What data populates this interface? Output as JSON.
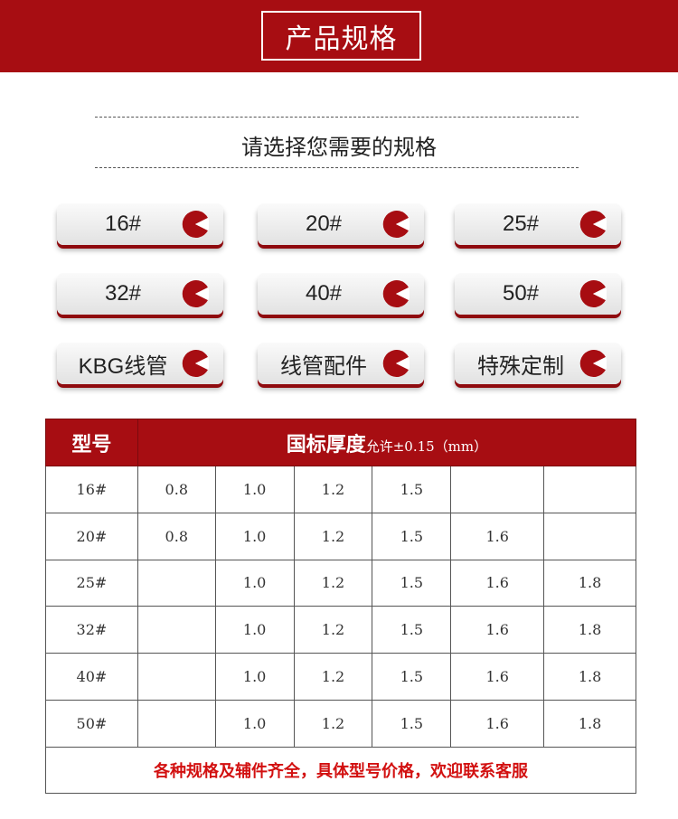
{
  "banner": {
    "title": "产品规格"
  },
  "subtitle": "请选择您需要的规格",
  "accent": "#a70d12",
  "buttons": [
    {
      "label": "16#",
      "icon": "pie-chart-icon"
    },
    {
      "label": "20#",
      "icon": "pie-chart-icon"
    },
    {
      "label": "25#",
      "icon": "pie-chart-icon"
    },
    {
      "label": "32#",
      "icon": "pie-chart-icon"
    },
    {
      "label": "40#",
      "icon": "pie-chart-icon"
    },
    {
      "label": "50#",
      "icon": "pie-chart-icon"
    },
    {
      "label": "KBG线管",
      "icon": "pie-chart-icon"
    },
    {
      "label": "线管配件",
      "icon": "pie-chart-icon"
    },
    {
      "label": "特殊定制",
      "icon": "pie-chart-icon"
    }
  ],
  "table": {
    "header_model": "型号",
    "header_thickness": "国标厚度",
    "header_tolerance": "允许±0.15（mm）",
    "rows": [
      [
        "16#",
        "0.8",
        "1.0",
        "1.2",
        "1.5",
        "",
        ""
      ],
      [
        "20#",
        "0.8",
        "1.0",
        "1.2",
        "1.5",
        "1.6",
        ""
      ],
      [
        "25#",
        "",
        "1.0",
        "1.2",
        "1.5",
        "1.6",
        "1.8"
      ],
      [
        "32#",
        "",
        "1.0",
        "1.2",
        "1.5",
        "1.6",
        "1.8"
      ],
      [
        "40#",
        "",
        "1.0",
        "1.2",
        "1.5",
        "1.6",
        "1.8"
      ],
      [
        "50#",
        "",
        "1.0",
        "1.2",
        "1.5",
        "1.6",
        "1.8"
      ]
    ],
    "footer": "各种规格及辅件齐全，具体型号价格，欢迎联系客服"
  }
}
